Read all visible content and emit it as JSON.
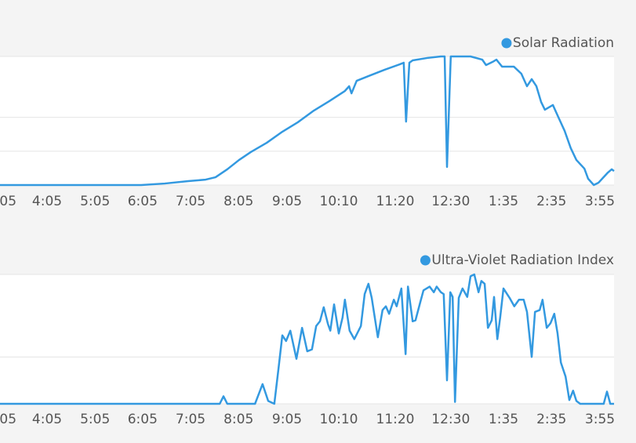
{
  "chart_data": [
    {
      "type": "line",
      "x": [
        0,
        30,
        35,
        40,
        43.7,
        45.8,
        48.3,
        50.8,
        53.3,
        56.7,
        60,
        63.3,
        66.7,
        70,
        73.3,
        74.2,
        74.7,
        75.8,
        78.3,
        81.7,
        85,
        85.8,
        86.3,
        87,
        87.7,
        90.8,
        93.7,
        94.5,
        95,
        95.8,
        100,
        102.5,
        103.3,
        104.7,
        105.5,
        106.7,
        109.2,
        110.8,
        112,
        113,
        114,
        115,
        115.8,
        117.5,
        118.7,
        120,
        121.3,
        122.5,
        124.2,
        125,
        126.2,
        127.2,
        129.2,
        130,
        130.5
      ],
      "series": [
        {
          "name": "Solar Radiation",
          "color": "#3399e0",
          "values": [
            0,
            0,
            9,
            23,
            32,
            46,
            93,
            148,
            195,
            250,
            315,
            371,
            440,
            496,
            556,
            584,
            542,
            616,
            644,
            681,
            714,
            723,
            375,
            723,
            737,
            751,
            760,
            760,
            107,
            760,
            760,
            741,
            709,
            728,
            741,
            700,
            700,
            658,
            584,
            626,
            584,
            491,
            445,
            473,
            399,
            320,
            218,
            148,
            97,
            37,
            0,
            14,
            74,
            93,
            83
          ]
        }
      ],
      "xlim": [
        0,
        130.5
      ],
      "ylim": [
        0,
        760
      ],
      "yticks": [
        0,
        200,
        400
      ],
      "xticks": [
        {
          "value": 1.7,
          "label": "05"
        },
        {
          "value": 10,
          "label": "4:05"
        },
        {
          "value": 20.2,
          "label": "5:05"
        },
        {
          "value": 30.3,
          "label": "6:05"
        },
        {
          "value": 40.5,
          "label": "7:05"
        },
        {
          "value": 50.7,
          "label": "8:05"
        },
        {
          "value": 61,
          "label": "9:05"
        },
        {
          "value": 72,
          "label": "10:10"
        },
        {
          "value": 84,
          "label": "11:20"
        },
        {
          "value": 95.8,
          "label": "12:30"
        },
        {
          "value": 107,
          "label": "1:35"
        },
        {
          "value": 117.2,
          "label": "2:35"
        },
        {
          "value": 127.5,
          "label": "3:55"
        }
      ],
      "grid": true
    },
    {
      "type": "line",
      "x": [
        0,
        46.7,
        47.5,
        48.3,
        54.2,
        55.8,
        57,
        58.3,
        59.2,
        60,
        60.8,
        61.7,
        63,
        64.2,
        65.3,
        66.3,
        67.2,
        68,
        68.8,
        69.7,
        70.2,
        71,
        72,
        72.8,
        73.3,
        74.3,
        75.3,
        76.7,
        77.5,
        78.3,
        79,
        80.3,
        81.3,
        82,
        82.7,
        83.7,
        84.3,
        85.3,
        86.2,
        86.7,
        87.7,
        88.3,
        89.3,
        90,
        91.3,
        92.2,
        92.8,
        93.7,
        94.3,
        95,
        95.7,
        96.2,
        96.7,
        97.5,
        98.3,
        99.3,
        100,
        100.8,
        101.7,
        102.3,
        103,
        103.7,
        104.5,
        105,
        105.7,
        106.3,
        107,
        108.3,
        109.3,
        110.3,
        111.3,
        112,
        113,
        113.7,
        114.7,
        115.3,
        116.2,
        117,
        117.8,
        118.5,
        119.2,
        120.2,
        121,
        121.8,
        122.5,
        123.3,
        128.3,
        129,
        129.7,
        130.5
      ],
      "series": [
        {
          "name": "Ultra-Violet Radiation Index",
          "color": "#3399e0",
          "values": [
            0,
            0,
            0.8,
            0,
            0,
            2.1,
            0.3,
            0,
            3.8,
            7.3,
            6.7,
            7.8,
            4.8,
            8.1,
            5.6,
            5.8,
            8.3,
            8.8,
            10.3,
            8.5,
            7.8,
            10.6,
            7.5,
            9.2,
            11.1,
            7.8,
            6.9,
            8.3,
            11.7,
            12.8,
            11.3,
            7.1,
            10,
            10.4,
            9.6,
            11.1,
            10.4,
            12.3,
            5.3,
            12.5,
            8.8,
            8.9,
            10.8,
            12.1,
            12.5,
            11.9,
            12.5,
            11.9,
            11.7,
            2.5,
            11.9,
            11.4,
            0.2,
            11.3,
            12.3,
            11.4,
            13.6,
            13.8,
            11.9,
            13.1,
            12.8,
            8.1,
            8.9,
            11.4,
            6.9,
            9.2,
            12.3,
            11.3,
            10.4,
            11.1,
            11.1,
            9.8,
            5,
            9.8,
            10,
            11.1,
            8.1,
            8.6,
            9.6,
            7.5,
            4.4,
            2.9,
            0.4,
            1.4,
            0.3,
            0,
            0,
            1.3,
            0,
            0
          ]
        }
      ],
      "xlim": [
        0,
        130.5
      ],
      "ylim": [
        0,
        13.8
      ],
      "yticks": [
        0,
        5
      ],
      "xticks": [
        {
          "value": 1.7,
          "label": "05"
        },
        {
          "value": 10,
          "label": "4:05"
        },
        {
          "value": 20.2,
          "label": "5:05"
        },
        {
          "value": 30.3,
          "label": "6:05"
        },
        {
          "value": 40.5,
          "label": "7:05"
        },
        {
          "value": 50.7,
          "label": "8:05"
        },
        {
          "value": 61,
          "label": "9:05"
        },
        {
          "value": 72,
          "label": "10:10"
        },
        {
          "value": 84,
          "label": "11:20"
        },
        {
          "value": 95.8,
          "label": "12:30"
        },
        {
          "value": 107,
          "label": "1:35"
        },
        {
          "value": 117.2,
          "label": "2:35"
        },
        {
          "value": 127.5,
          "label": "3:55"
        }
      ],
      "grid": true
    }
  ]
}
